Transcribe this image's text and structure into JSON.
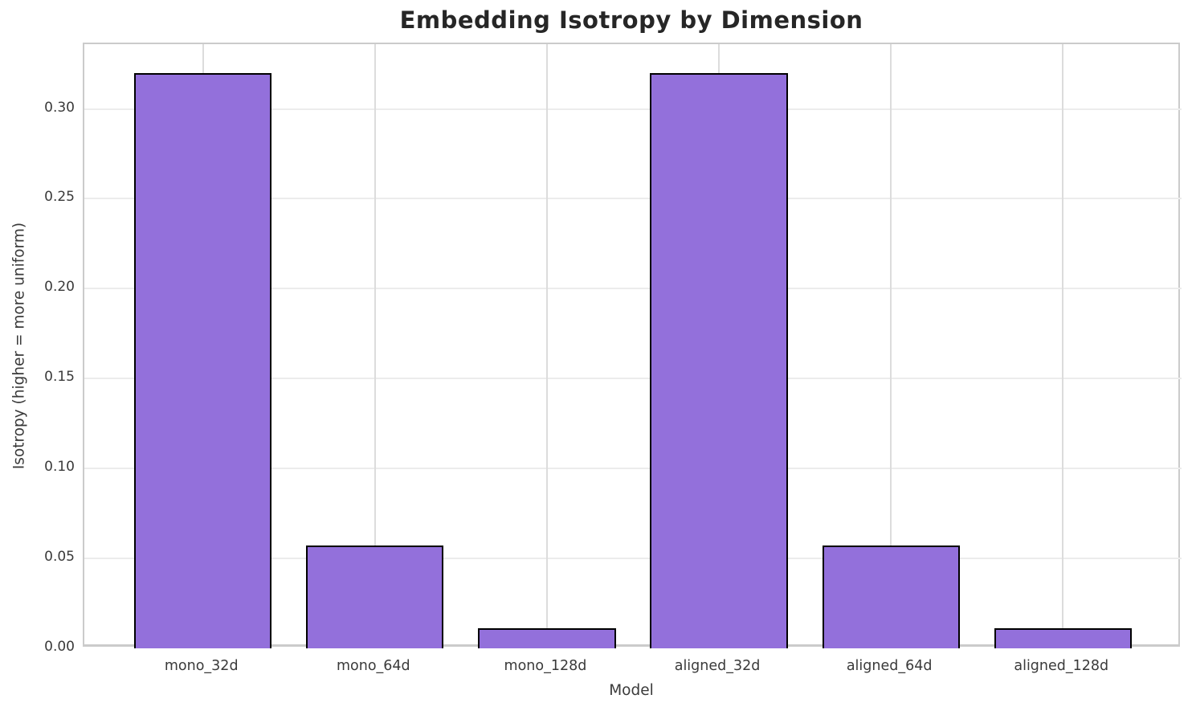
{
  "chart_data": {
    "type": "bar",
    "title": "Embedding Isotropy by Dimension",
    "xlabel": "Model",
    "ylabel": "Isotropy (higher = more uniform)",
    "categories": [
      "mono_32d",
      "mono_64d",
      "mono_128d",
      "aligned_32d",
      "aligned_64d",
      "aligned_128d"
    ],
    "values": [
      0.32,
      0.057,
      0.011,
      0.32,
      0.057,
      0.011
    ],
    "yticks": [
      0.0,
      0.05,
      0.1,
      0.15,
      0.2,
      0.25,
      0.3
    ],
    "ytick_labels": [
      "0.00",
      "0.05",
      "0.10",
      "0.15",
      "0.20",
      "0.25",
      "0.30"
    ],
    "ylim": [
      0,
      0.336
    ],
    "grid": true,
    "legend_position": "none",
    "colors": {
      "bar_fill": "#9370DB",
      "bar_edge": "#000000",
      "grid_horizontal": "#ececec",
      "grid_vertical": "#dcdcdc",
      "frame": "#cbcbcb",
      "title_text": "#262626",
      "tick_text": "#3a3a3a",
      "background": "#ffffff"
    }
  }
}
